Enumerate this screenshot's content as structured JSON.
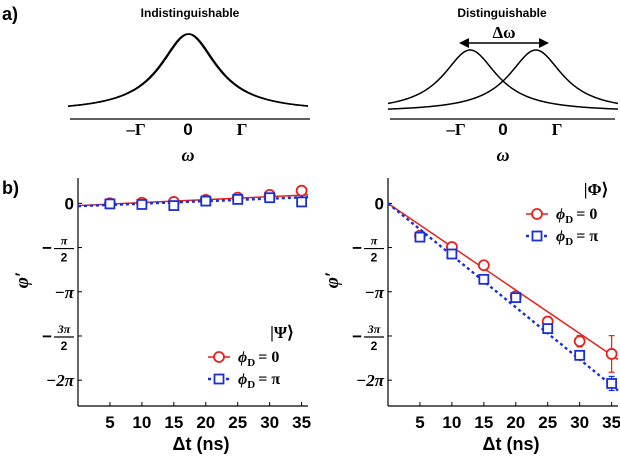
{
  "panel_labels": {
    "a": "a)",
    "b": "b)"
  },
  "chart_data": [
    {
      "id": "a-left",
      "type": "line",
      "title": "Indistinguishable",
      "xlabel": "ω",
      "xticks": [
        "–Γ",
        "0",
        "Γ"
      ],
      "xlim": [
        -3.5,
        3.5
      ],
      "series": [
        {
          "center": 0.0,
          "gamma": 1.0
        },
        {
          "center": 0.03,
          "gamma": 1.0
        }
      ]
    },
    {
      "id": "a-right",
      "type": "line",
      "title": "Distinguishable",
      "xlabel": "ω",
      "xticks": [
        "–Γ",
        "0",
        "Γ"
      ],
      "xlim": [
        -3.5,
        3.5
      ],
      "annotation": "Δω",
      "series": [
        {
          "center": -1.0,
          "gamma": 1.0
        },
        {
          "center": 1.0,
          "gamma": 1.0
        }
      ]
    },
    {
      "id": "b-left",
      "type": "scatter",
      "xlabel": "Δt (ns)",
      "ylabel": "φ′",
      "xticks": [
        "5",
        "10",
        "15",
        "20",
        "25",
        "30",
        "35"
      ],
      "yticks": [
        "0",
        "−π/2",
        "−π",
        "−3π/2",
        "−2π"
      ],
      "xlim": [
        0,
        36
      ],
      "ylim": [
        -7.2,
        0.9
      ],
      "legend_title": "|Ψ⟩",
      "legend": [
        "ϕD = 0",
        "ϕD = π"
      ],
      "series": [
        {
          "name": "ϕD = 0",
          "color": "#e8211b",
          "marker": "circle",
          "line": "solid",
          "x": [
            5,
            10,
            15,
            20,
            25,
            30,
            35
          ],
          "y": [
            0.0,
            0.02,
            0.05,
            0.12,
            0.2,
            0.3,
            0.45
          ],
          "fit": [
            [
              0,
              -0.08
            ],
            [
              36,
              0.3
            ]
          ]
        },
        {
          "name": "ϕD = π",
          "color": "#1a2fd4",
          "marker": "square",
          "line": "dotted",
          "x": [
            5,
            10,
            15,
            20,
            25,
            30,
            35
          ],
          "y": [
            -0.02,
            -0.04,
            -0.08,
            0.08,
            0.14,
            0.2,
            0.05
          ],
          "fit": [
            [
              0,
              -0.1
            ],
            [
              36,
              0.22
            ]
          ]
        }
      ]
    },
    {
      "id": "b-right",
      "type": "scatter",
      "xlabel": "Δt (ns)",
      "ylabel": "φ′",
      "xticks": [
        "5",
        "10",
        "15",
        "20",
        "25",
        "30",
        "35"
      ],
      "yticks": [
        "0",
        "−π/2",
        "−π",
        "−3π/2",
        "−2π"
      ],
      "xlim": [
        0,
        36
      ],
      "ylim": [
        -7.2,
        0.9
      ],
      "legend_title": "|Φ⟩",
      "legend": [
        "ϕD = 0",
        "ϕD = π"
      ],
      "series": [
        {
          "name": "ϕD = 0",
          "color": "#e8211b",
          "marker": "circle",
          "line": "solid",
          "x": [
            5,
            10,
            15,
            20,
            25,
            30,
            35
          ],
          "y": [
            -1.15,
            -1.55,
            -2.2,
            -3.3,
            -4.2,
            -4.9,
            -5.35
          ],
          "err": [
            0.1,
            0.1,
            0.1,
            0.1,
            0.12,
            0.2,
            0.65
          ],
          "fit": [
            [
              0,
              0.0
            ],
            [
              36,
              -5.55
            ]
          ]
        },
        {
          "name": "ϕD = π",
          "color": "#1a2fd4",
          "marker": "square",
          "line": "dotted",
          "x": [
            5,
            10,
            15,
            20,
            25,
            30,
            35
          ],
          "y": [
            -1.2,
            -1.8,
            -2.7,
            -3.35,
            -4.45,
            -5.4,
            -6.4
          ],
          "err": [
            0.1,
            0.1,
            0.1,
            0.1,
            0.12,
            0.15,
            0.25
          ],
          "fit": [
            [
              0,
              0.0
            ],
            [
              36,
              -6.65
            ]
          ]
        }
      ]
    }
  ],
  "math": {
    "pi_label": "π",
    "half_pi_num": "π",
    "three_pi_num": "3π",
    "frac_den": "2",
    "minus": "−",
    "two_pi": "−2π",
    "phi_prime": "φ′",
    "phi_d": "ϕ",
    "sub_d": "D",
    "eq0": "= 0",
    "eqpi": "= π"
  }
}
